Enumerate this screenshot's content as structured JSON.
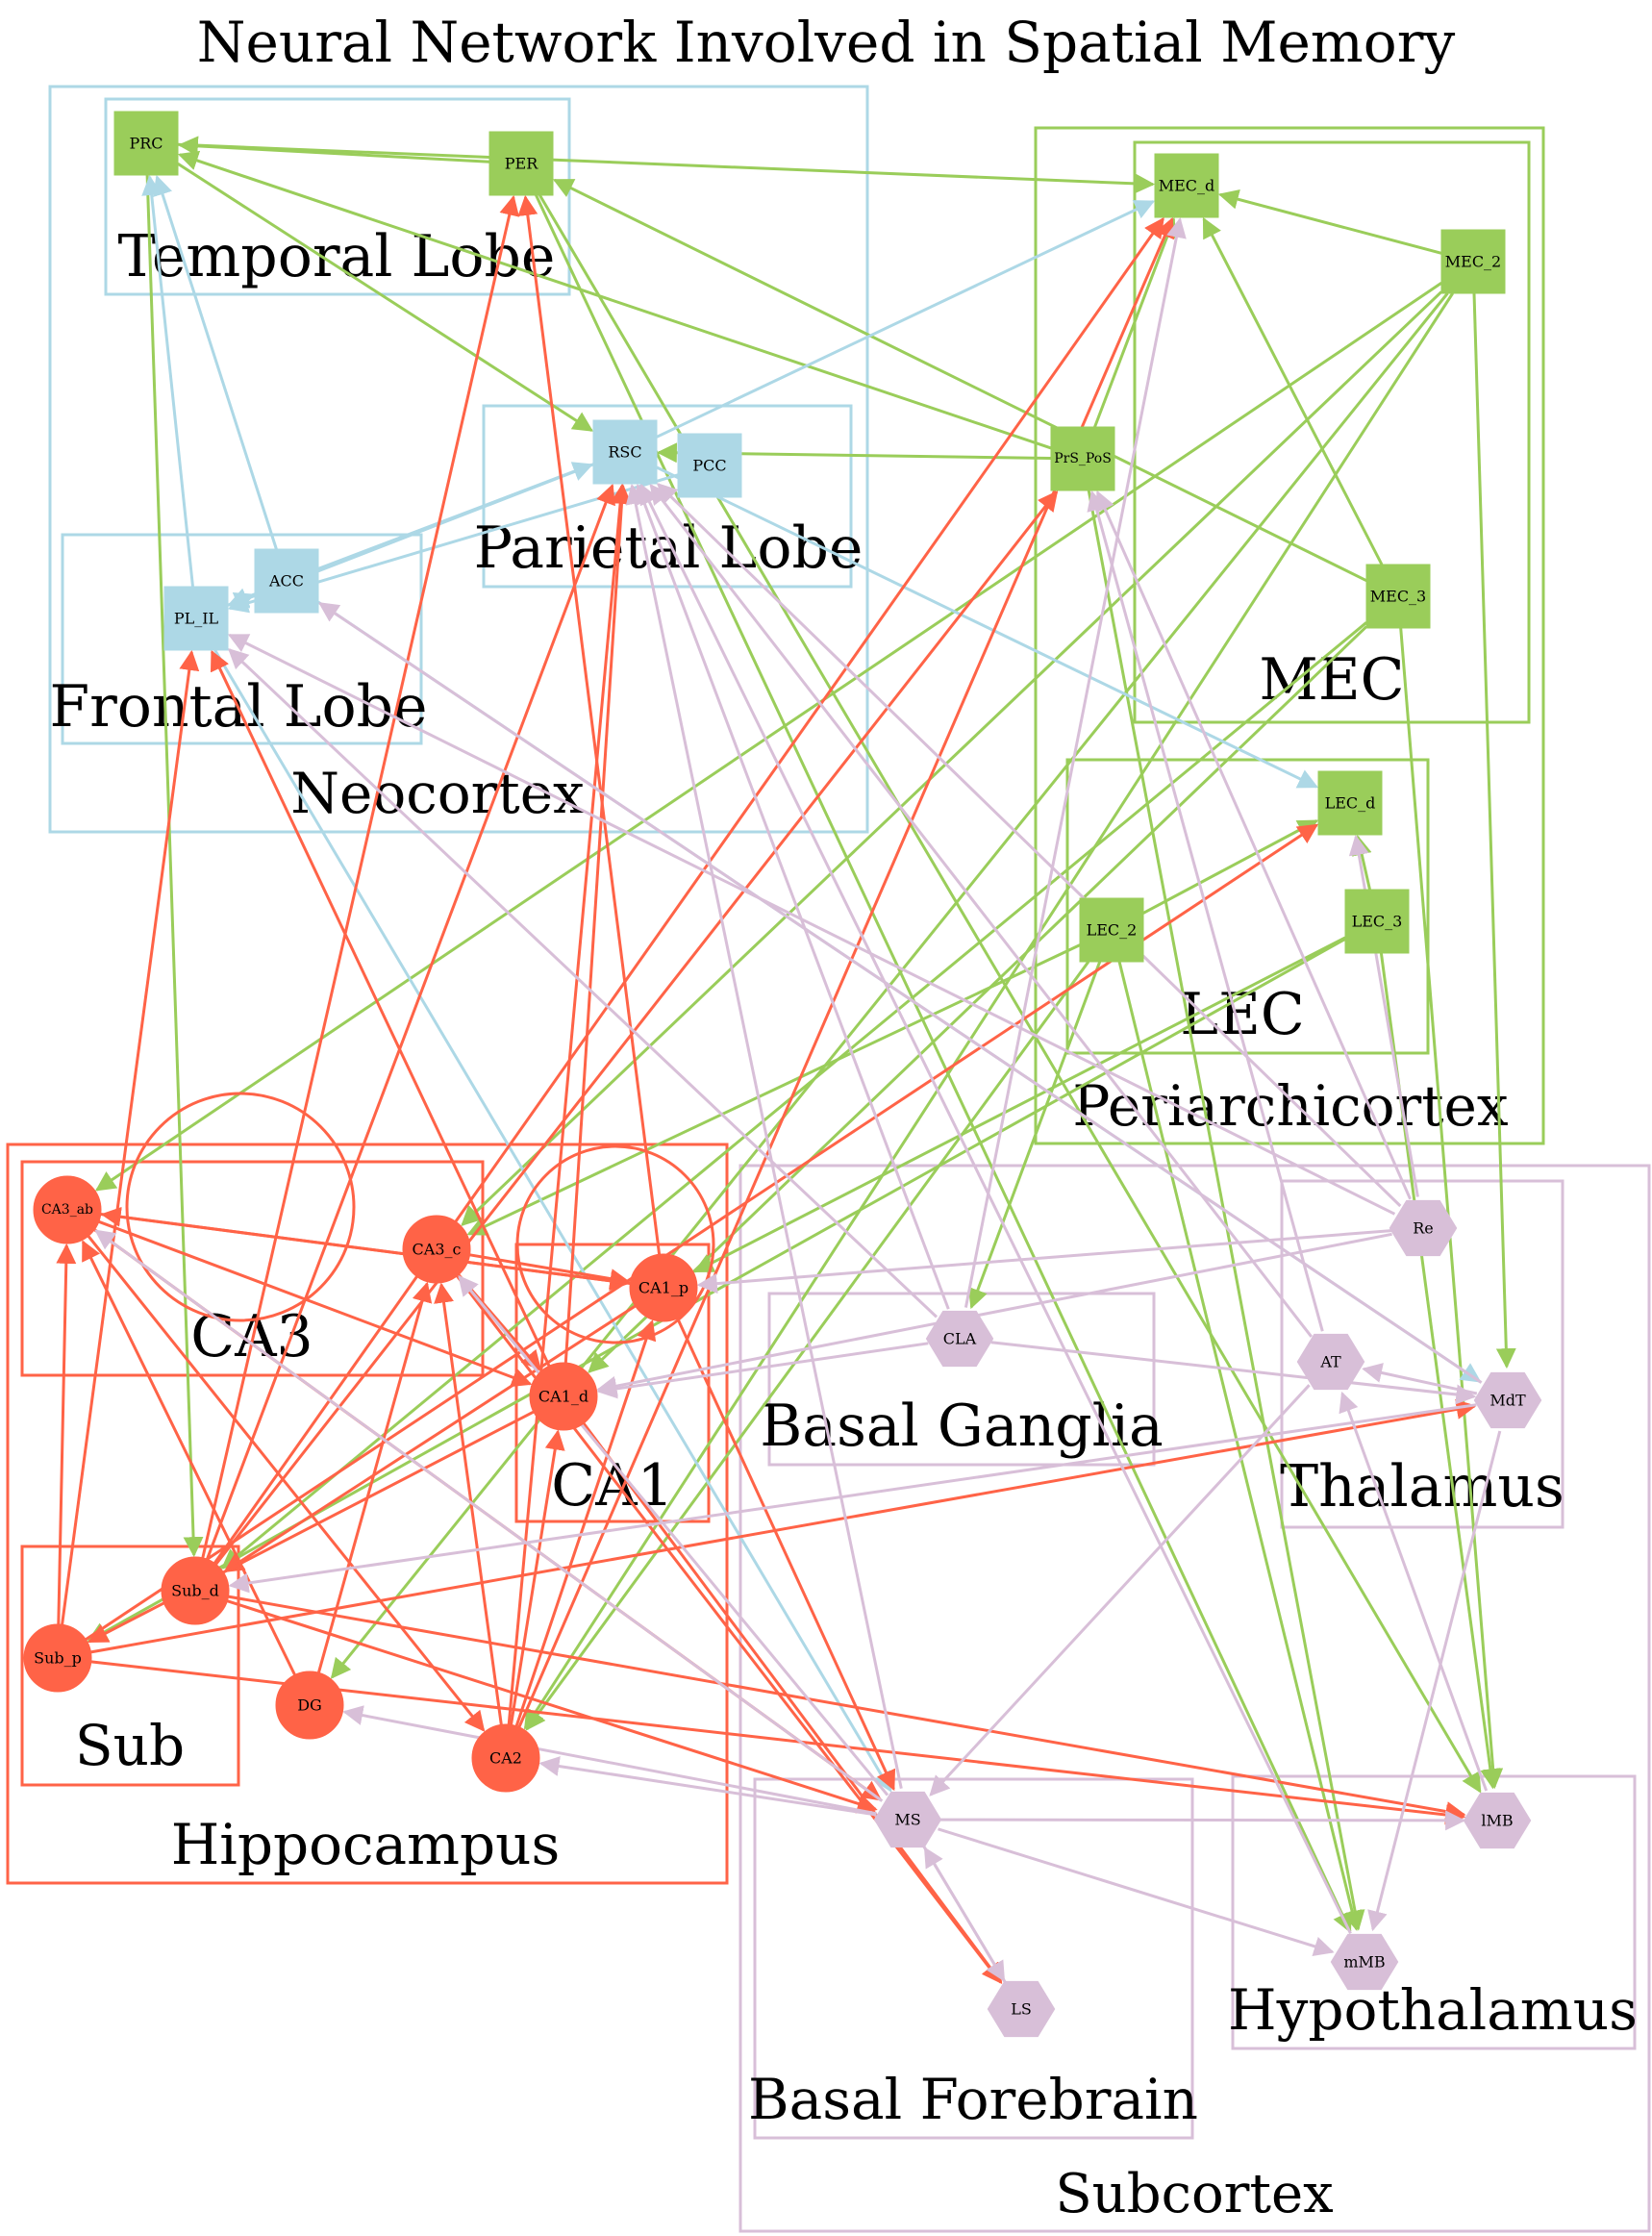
{
  "title": "Neural Network Involved in Spatial Memory",
  "colors": {
    "neocortex": "#add8e6",
    "periarchicortex": "#9acd5a",
    "hippocampus": "#ff6347",
    "subcortex": "#d8bfd8"
  },
  "clusters": [
    {
      "id": "neocortex",
      "label": "Neocortex",
      "group": "neocortex"
    },
    {
      "id": "temporal",
      "label": "Temporal Lobe",
      "group": "neocortex"
    },
    {
      "id": "parietal",
      "label": "Parietal Lobe",
      "group": "neocortex"
    },
    {
      "id": "frontal",
      "label": "Frontal Lobe",
      "group": "neocortex"
    },
    {
      "id": "periarchicortex",
      "label": "Periarchicortex",
      "group": "periarchicortex"
    },
    {
      "id": "mec",
      "label": "MEC",
      "group": "periarchicortex"
    },
    {
      "id": "lec",
      "label": "LEC",
      "group": "periarchicortex"
    },
    {
      "id": "hippocampus",
      "label": "Hippocampus",
      "group": "hippocampus"
    },
    {
      "id": "ca3",
      "label": "CA3",
      "group": "hippocampus"
    },
    {
      "id": "ca1",
      "label": "CA1",
      "group": "hippocampus"
    },
    {
      "id": "sub",
      "label": "Sub",
      "group": "hippocampus"
    },
    {
      "id": "subcortex",
      "label": "Subcortex",
      "group": "subcortex"
    },
    {
      "id": "basal_ganglia",
      "label": "Basal Ganglia",
      "group": "subcortex"
    },
    {
      "id": "thalamus",
      "label": "Thalamus",
      "group": "subcortex"
    },
    {
      "id": "basal_forebrain",
      "label": "Basal Forebrain",
      "group": "subcortex"
    },
    {
      "id": "hypothalamus",
      "label": "Hypothalamus",
      "group": "subcortex"
    }
  ],
  "nodes": [
    {
      "id": "PRC",
      "label": "PRC",
      "group": "periarchicortex",
      "shape": "box"
    },
    {
      "id": "PER",
      "label": "PER",
      "group": "periarchicortex",
      "shape": "box"
    },
    {
      "id": "RSC",
      "label": "RSC",
      "group": "neocortex",
      "shape": "box"
    },
    {
      "id": "PCC",
      "label": "PCC",
      "group": "neocortex",
      "shape": "box"
    },
    {
      "id": "ACC",
      "label": "ACC",
      "group": "neocortex",
      "shape": "box"
    },
    {
      "id": "PL_IL",
      "label": "PL_IL",
      "group": "neocortex",
      "shape": "box"
    },
    {
      "id": "MEC_d",
      "label": "MEC_d",
      "group": "periarchicortex",
      "shape": "box"
    },
    {
      "id": "MEC_2",
      "label": "MEC_2",
      "group": "periarchicortex",
      "shape": "box"
    },
    {
      "id": "MEC_3",
      "label": "MEC_3",
      "group": "periarchicortex",
      "shape": "box"
    },
    {
      "id": "PrS_PoS",
      "label": "PrS_PoS",
      "group": "periarchicortex",
      "shape": "box"
    },
    {
      "id": "LEC_d",
      "label": "LEC_d",
      "group": "periarchicortex",
      "shape": "box"
    },
    {
      "id": "LEC_2",
      "label": "LEC_2",
      "group": "periarchicortex",
      "shape": "box"
    },
    {
      "id": "LEC_3",
      "label": "LEC_3",
      "group": "periarchicortex",
      "shape": "box"
    },
    {
      "id": "CA3_ab",
      "label": "CA3_ab",
      "group": "hippocampus",
      "shape": "circle"
    },
    {
      "id": "CA3_c",
      "label": "CA3_c",
      "group": "hippocampus",
      "shape": "circle"
    },
    {
      "id": "CA1_p",
      "label": "CA1_p",
      "group": "hippocampus",
      "shape": "circle"
    },
    {
      "id": "CA1_d",
      "label": "CA1_d",
      "group": "hippocampus",
      "shape": "circle"
    },
    {
      "id": "Sub_d",
      "label": "Sub_d",
      "group": "hippocampus",
      "shape": "circle"
    },
    {
      "id": "Sub_p",
      "label": "Sub_p",
      "group": "hippocampus",
      "shape": "circle"
    },
    {
      "id": "DG",
      "label": "DG",
      "group": "hippocampus",
      "shape": "circle"
    },
    {
      "id": "CA2",
      "label": "CA2",
      "group": "hippocampus",
      "shape": "circle"
    },
    {
      "id": "Re",
      "label": "Re",
      "group": "subcortex",
      "shape": "hexagon"
    },
    {
      "id": "CLA",
      "label": "CLA",
      "group": "subcortex",
      "shape": "hexagon"
    },
    {
      "id": "AT",
      "label": "AT",
      "group": "subcortex",
      "shape": "hexagon"
    },
    {
      "id": "MdT",
      "label": "MdT",
      "group": "subcortex",
      "shape": "hexagon"
    },
    {
      "id": "MS",
      "label": "MS",
      "group": "subcortex",
      "shape": "hexagon"
    },
    {
      "id": "lMB",
      "label": "lMB",
      "group": "subcortex",
      "shape": "hexagon"
    },
    {
      "id": "mMB",
      "label": "mMB",
      "group": "subcortex",
      "shape": "hexagon"
    },
    {
      "id": "LS",
      "label": "LS",
      "group": "subcortex",
      "shape": "hexagon"
    }
  ],
  "edges": [
    {
      "from": "PER",
      "to": "PRC",
      "group": "periarchicortex"
    },
    {
      "from": "PRC",
      "to": "MEC_d",
      "group": "periarchicortex"
    },
    {
      "from": "PRC",
      "to": "RSC",
      "group": "periarchicortex"
    },
    {
      "from": "PRC",
      "to": "Sub_d",
      "group": "periarchicortex"
    },
    {
      "from": "PER",
      "to": "mMB",
      "group": "periarchicortex"
    },
    {
      "from": "PER",
      "to": "lMB",
      "group": "periarchicortex"
    },
    {
      "from": "PrS_PoS",
      "to": "PRC",
      "group": "periarchicortex"
    },
    {
      "from": "PrS_PoS",
      "to": "RSC",
      "group": "periarchicortex"
    },
    {
      "from": "PrS_PoS",
      "to": "MEC_d",
      "group": "periarchicortex"
    },
    {
      "from": "PrS_PoS",
      "to": "mMB",
      "group": "periarchicortex"
    },
    {
      "from": "MEC_2",
      "to": "MEC_d",
      "group": "periarchicortex"
    },
    {
      "from": "MEC_2",
      "to": "CA3_ab",
      "group": "periarchicortex"
    },
    {
      "from": "MEC_2",
      "to": "CA3_c",
      "group": "periarchicortex"
    },
    {
      "from": "MEC_2",
      "to": "DG",
      "group": "periarchicortex"
    },
    {
      "from": "MEC_2",
      "to": "CA2",
      "group": "periarchicortex"
    },
    {
      "from": "MEC_2",
      "to": "MdT",
      "group": "periarchicortex"
    },
    {
      "from": "MEC_3",
      "to": "MEC_d",
      "group": "periarchicortex"
    },
    {
      "from": "MEC_3",
      "to": "CA1_d",
      "group": "periarchicortex"
    },
    {
      "from": "MEC_3",
      "to": "Sub_d",
      "group": "periarchicortex"
    },
    {
      "from": "MEC_3",
      "to": "lMB",
      "group": "periarchicortex"
    },
    {
      "from": "MEC_3",
      "to": "PER",
      "group": "periarchicortex"
    },
    {
      "from": "LEC_3",
      "to": "LEC_d",
      "group": "periarchicortex"
    },
    {
      "from": "LEC_3",
      "to": "Sub_p",
      "group": "periarchicortex"
    },
    {
      "from": "LEC_3",
      "to": "CA1_p",
      "group": "periarchicortex"
    },
    {
      "from": "LEC_3",
      "to": "lMB",
      "group": "periarchicortex"
    },
    {
      "from": "LEC_2",
      "to": "LEC_d",
      "group": "periarchicortex"
    },
    {
      "from": "LEC_2",
      "to": "CA3_c",
      "group": "periarchicortex"
    },
    {
      "from": "LEC_2",
      "to": "CA2",
      "group": "periarchicortex"
    },
    {
      "from": "LEC_2",
      "to": "mMB",
      "group": "periarchicortex"
    },
    {
      "from": "LEC_2",
      "to": "CLA",
      "group": "periarchicortex"
    },
    {
      "from": "PL_IL",
      "to": "PRC",
      "group": "neocortex"
    },
    {
      "from": "PL_IL",
      "to": "ACC",
      "group": "neocortex"
    },
    {
      "from": "PL_IL",
      "to": "MS",
      "group": "neocortex"
    },
    {
      "from": "ACC",
      "to": "PRC",
      "group": "neocortex"
    },
    {
      "from": "ACC",
      "to": "RSC",
      "group": "neocortex"
    },
    {
      "from": "ACC",
      "to": "PL_IL",
      "group": "neocortex"
    },
    {
      "from": "ACC",
      "to": "MdT",
      "group": "neocortex"
    },
    {
      "from": "RSC",
      "to": "MEC_d",
      "group": "neocortex"
    },
    {
      "from": "RSC",
      "to": "LEC_d",
      "group": "neocortex"
    },
    {
      "from": "RSC",
      "to": "PL_IL",
      "group": "neocortex"
    },
    {
      "from": "PCC",
      "to": "PL_IL",
      "group": "neocortex"
    },
    {
      "from": "CA3_ab",
      "to": "CA3_ab",
      "group": "hippocampus"
    },
    {
      "from": "CA3_ab",
      "to": "CA1_p",
      "group": "hippocampus"
    },
    {
      "from": "CA3_ab",
      "to": "CA1_d",
      "group": "hippocampus"
    },
    {
      "from": "CA3_ab",
      "to": "CA2",
      "group": "hippocampus"
    },
    {
      "from": "CA3_ab",
      "to": "MS",
      "group": "hippocampus"
    },
    {
      "from": "CA3_c",
      "to": "CA3_c",
      "group": "hippocampus"
    },
    {
      "from": "CA3_c",
      "to": "CA1_p",
      "group": "hippocampus"
    },
    {
      "from": "CA3_c",
      "to": "CA1_d",
      "group": "hippocampus"
    },
    {
      "from": "CA3_c",
      "to": "LS",
      "group": "hippocampus"
    },
    {
      "from": "CA1_p",
      "to": "CA3_ab",
      "group": "hippocampus"
    },
    {
      "from": "CA1_p",
      "to": "PER",
      "group": "hippocampus"
    },
    {
      "from": "CA1_p",
      "to": "Sub_d",
      "group": "hippocampus"
    },
    {
      "from": "CA1_p",
      "to": "MS",
      "group": "hippocampus"
    },
    {
      "from": "CA1_d",
      "to": "PL_IL",
      "group": "hippocampus"
    },
    {
      "from": "CA1_d",
      "to": "RSC",
      "group": "hippocampus"
    },
    {
      "from": "CA1_d",
      "to": "Sub_p",
      "group": "hippocampus"
    },
    {
      "from": "CA1_d",
      "to": "LS",
      "group": "hippocampus"
    },
    {
      "from": "Sub_d",
      "to": "PER",
      "group": "hippocampus"
    },
    {
      "from": "Sub_d",
      "to": "RSC",
      "group": "hippocampus"
    },
    {
      "from": "Sub_d",
      "to": "MEC_d",
      "group": "hippocampus"
    },
    {
      "from": "Sub_d",
      "to": "PrS_PoS",
      "group": "hippocampus"
    },
    {
      "from": "Sub_d",
      "to": "lMB",
      "group": "hippocampus"
    },
    {
      "from": "Sub_d",
      "to": "MS",
      "group": "hippocampus"
    },
    {
      "from": "Sub_p",
      "to": "PL_IL",
      "group": "hippocampus"
    },
    {
      "from": "Sub_p",
      "to": "CA3_ab",
      "group": "hippocampus"
    },
    {
      "from": "Sub_p",
      "to": "LEC_d",
      "group": "hippocampus"
    },
    {
      "from": "Sub_p",
      "to": "MdT",
      "group": "hippocampus"
    },
    {
      "from": "Sub_p",
      "to": "lMB",
      "group": "hippocampus"
    },
    {
      "from": "DG",
      "to": "CA3_ab",
      "group": "hippocampus"
    },
    {
      "from": "DG",
      "to": "CA3_c",
      "group": "hippocampus"
    },
    {
      "from": "CA2",
      "to": "CA3_c",
      "group": "hippocampus"
    },
    {
      "from": "CA2",
      "to": "CA1_p",
      "group": "hippocampus"
    },
    {
      "from": "CA2",
      "to": "CA1_d",
      "group": "hippocampus"
    },
    {
      "from": "CA2",
      "to": "RSC",
      "group": "hippocampus"
    },
    {
      "from": "CA2",
      "to": "MEC_d",
      "group": "hippocampus"
    },
    {
      "from": "Re",
      "to": "CA1_p",
      "group": "subcortex"
    },
    {
      "from": "Re",
      "to": "CA1_d",
      "group": "subcortex"
    },
    {
      "from": "Re",
      "to": "PL_IL",
      "group": "subcortex"
    },
    {
      "from": "Re",
      "to": "RSC",
      "group": "subcortex"
    },
    {
      "from": "Re",
      "to": "LEC_d",
      "group": "subcortex"
    },
    {
      "from": "Re",
      "to": "PrS_PoS",
      "group": "subcortex"
    },
    {
      "from": "CLA",
      "to": "MdT",
      "group": "subcortex"
    },
    {
      "from": "CLA",
      "to": "PL_IL",
      "group": "subcortex"
    },
    {
      "from": "CLA",
      "to": "RSC",
      "group": "subcortex"
    },
    {
      "from": "CLA",
      "to": "CA1_d",
      "group": "subcortex"
    },
    {
      "from": "CLA",
      "to": "MEC_d",
      "group": "subcortex"
    },
    {
      "from": "MdT",
      "to": "ACC",
      "group": "subcortex"
    },
    {
      "from": "MdT",
      "to": "Sub_d",
      "group": "subcortex"
    },
    {
      "from": "MdT",
      "to": "AT",
      "group": "subcortex"
    },
    {
      "from": "MdT",
      "to": "mMB",
      "group": "subcortex"
    },
    {
      "from": "AT",
      "to": "RSC",
      "group": "subcortex"
    },
    {
      "from": "AT",
      "to": "MS",
      "group": "subcortex"
    },
    {
      "from": "AT",
      "to": "PrS_PoS",
      "group": "subcortex"
    },
    {
      "from": "MS",
      "to": "CA2",
      "group": "subcortex"
    },
    {
      "from": "MS",
      "to": "DG",
      "group": "subcortex"
    },
    {
      "from": "MS",
      "to": "CA3_ab",
      "group": "subcortex"
    },
    {
      "from": "MS",
      "to": "CA3_c",
      "group": "subcortex"
    },
    {
      "from": "MS",
      "to": "lMB",
      "group": "subcortex"
    },
    {
      "from": "MS",
      "to": "mMB",
      "group": "subcortex"
    },
    {
      "from": "MS",
      "to": "LS",
      "group": "subcortex"
    },
    {
      "from": "MS",
      "to": "RSC",
      "group": "subcortex"
    },
    {
      "from": "LS",
      "to": "MS",
      "group": "subcortex"
    },
    {
      "from": "lMB",
      "to": "AT",
      "group": "subcortex"
    },
    {
      "from": "mMB",
      "to": "RSC",
      "group": "subcortex"
    }
  ]
}
